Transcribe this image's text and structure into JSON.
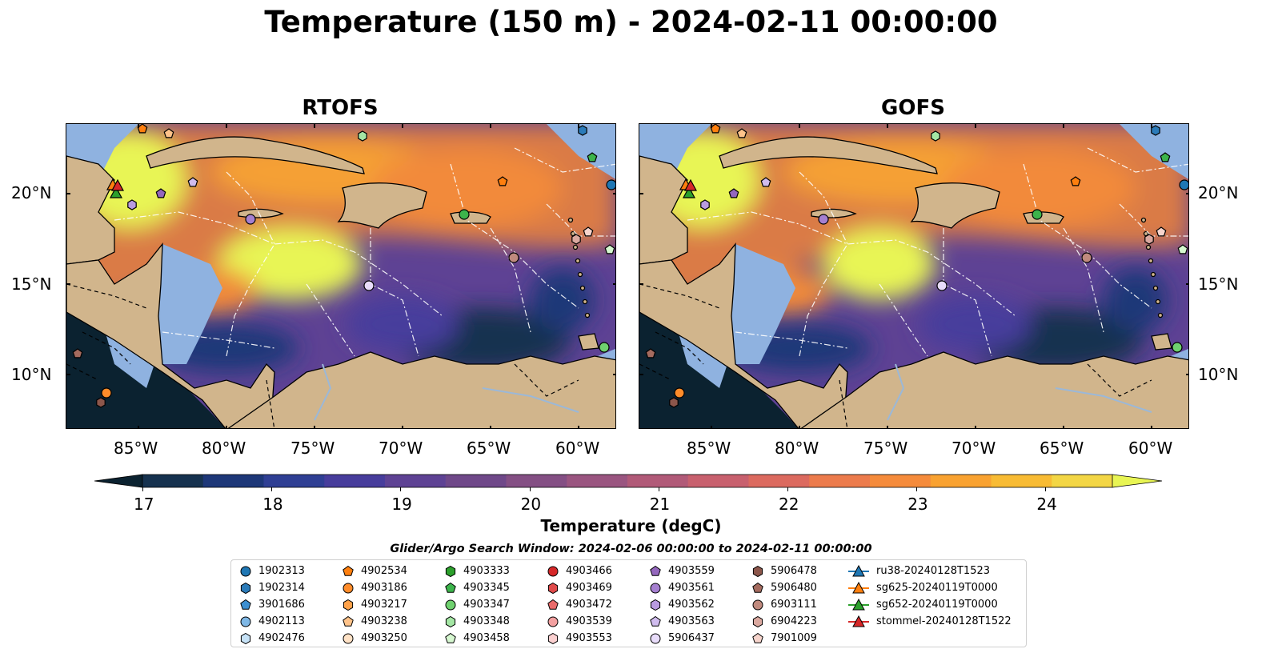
{
  "title": "Temperature (150 m) - 2024-02-11 00:00:00",
  "panels": [
    {
      "title": "RTOFS"
    },
    {
      "title": "GOFS"
    }
  ],
  "axes": {
    "x_ticks": [
      "85°W",
      "80°W",
      "75°W",
      "70°W",
      "65°W",
      "60°W"
    ],
    "y_ticks": [
      "20°N",
      "15°N",
      "10°N"
    ]
  },
  "colorbar": {
    "label": "Temperature (degC)",
    "ticks": [
      "17",
      "18",
      "19",
      "20",
      "21",
      "22",
      "23",
      "24"
    ],
    "colors": [
      "#0b2230",
      "#16324f",
      "#1d3778",
      "#2f3f94",
      "#473d9c",
      "#5e4294",
      "#6f4889",
      "#844f84",
      "#9a5580",
      "#b15a78",
      "#c8606e",
      "#dc6a5f",
      "#ec7b4c",
      "#f58b3b",
      "#f9a231",
      "#f8bb34",
      "#f3d645",
      "#e8f554"
    ],
    "extend": "both"
  },
  "map_colors": {
    "land": "#d1b58c",
    "shallow": "#8fb2e0",
    "ocean_cold": "#0b2230",
    "ocean_mid": "#5e4294",
    "ocean_warm": "#f5a034",
    "ocean_hot": "#e8f554"
  },
  "legend": {
    "title": "Glider/Argo Search Window: 2024-02-06 00:00:00 to 2024-02-11 00:00:00",
    "items": [
      {
        "label": "1902313",
        "marker": "circle",
        "color": "#1f77b4"
      },
      {
        "label": "1902314",
        "marker": "hexagon",
        "color": "#2b7bb9"
      },
      {
        "label": "3901686",
        "marker": "pentagon",
        "color": "#3d8fd0"
      },
      {
        "label": "4902113",
        "marker": "circle",
        "color": "#7fb8e6"
      },
      {
        "label": "4902476",
        "marker": "hexagon",
        "color": "#c6e2f7"
      },
      {
        "label": "4902534",
        "marker": "pentagon",
        "color": "#ff7f0e"
      },
      {
        "label": "4903186",
        "marker": "circle",
        "color": "#ff8c2a"
      },
      {
        "label": "4903217",
        "marker": "hexagon",
        "color": "#ffa24a"
      },
      {
        "label": "4903238",
        "marker": "pentagon",
        "color": "#ffc38a"
      },
      {
        "label": "4903250",
        "marker": "circle",
        "color": "#ffe2c6"
      },
      {
        "label": "4903333",
        "marker": "hexagon",
        "color": "#2ca02c"
      },
      {
        "label": "4903345",
        "marker": "pentagon",
        "color": "#3cb44b"
      },
      {
        "label": "4903347",
        "marker": "circle",
        "color": "#6fd16f"
      },
      {
        "label": "4903348",
        "marker": "hexagon",
        "color": "#a4e6a4"
      },
      {
        "label": "4903458",
        "marker": "pentagon",
        "color": "#d6f7d0"
      },
      {
        "label": "4903466",
        "marker": "circle",
        "color": "#d62728"
      },
      {
        "label": "4903469",
        "marker": "hexagon",
        "color": "#e04a4a"
      },
      {
        "label": "4903472",
        "marker": "pentagon",
        "color": "#ea6b6b"
      },
      {
        "label": "4903539",
        "marker": "circle",
        "color": "#f3a0a0"
      },
      {
        "label": "4903553",
        "marker": "hexagon",
        "color": "#fbd0d0"
      },
      {
        "label": "4903559",
        "marker": "pentagon",
        "color": "#9467bd"
      },
      {
        "label": "4903561",
        "marker": "circle",
        "color": "#a57fd0"
      },
      {
        "label": "4903562",
        "marker": "hexagon",
        "color": "#b99be0"
      },
      {
        "label": "4903563",
        "marker": "pentagon",
        "color": "#d0bcee"
      },
      {
        "label": "5906437",
        "marker": "circle",
        "color": "#e8dcfa"
      },
      {
        "label": "5906478",
        "marker": "hexagon",
        "color": "#8c564b"
      },
      {
        "label": "5906480",
        "marker": "pentagon",
        "color": "#a46b5f"
      },
      {
        "label": "6903111",
        "marker": "circle",
        "color": "#c08a7e"
      },
      {
        "label": "6904223",
        "marker": "hexagon",
        "color": "#dba9a0"
      },
      {
        "label": "7901009",
        "marker": "pentagon",
        "color": "#f6d4cc"
      },
      {
        "label": "ru38-20240128T1523",
        "marker": "triangle-line",
        "color": "#1f77b4"
      },
      {
        "label": "sg625-20240119T0000",
        "marker": "triangle-line",
        "color": "#ff7f0e"
      },
      {
        "label": "sg652-20240119T0000",
        "marker": "triangle-line",
        "color": "#2ca02c"
      },
      {
        "label": "stommel-20240128T1522",
        "marker": "triangle-line",
        "color": "#d62728"
      }
    ]
  }
}
